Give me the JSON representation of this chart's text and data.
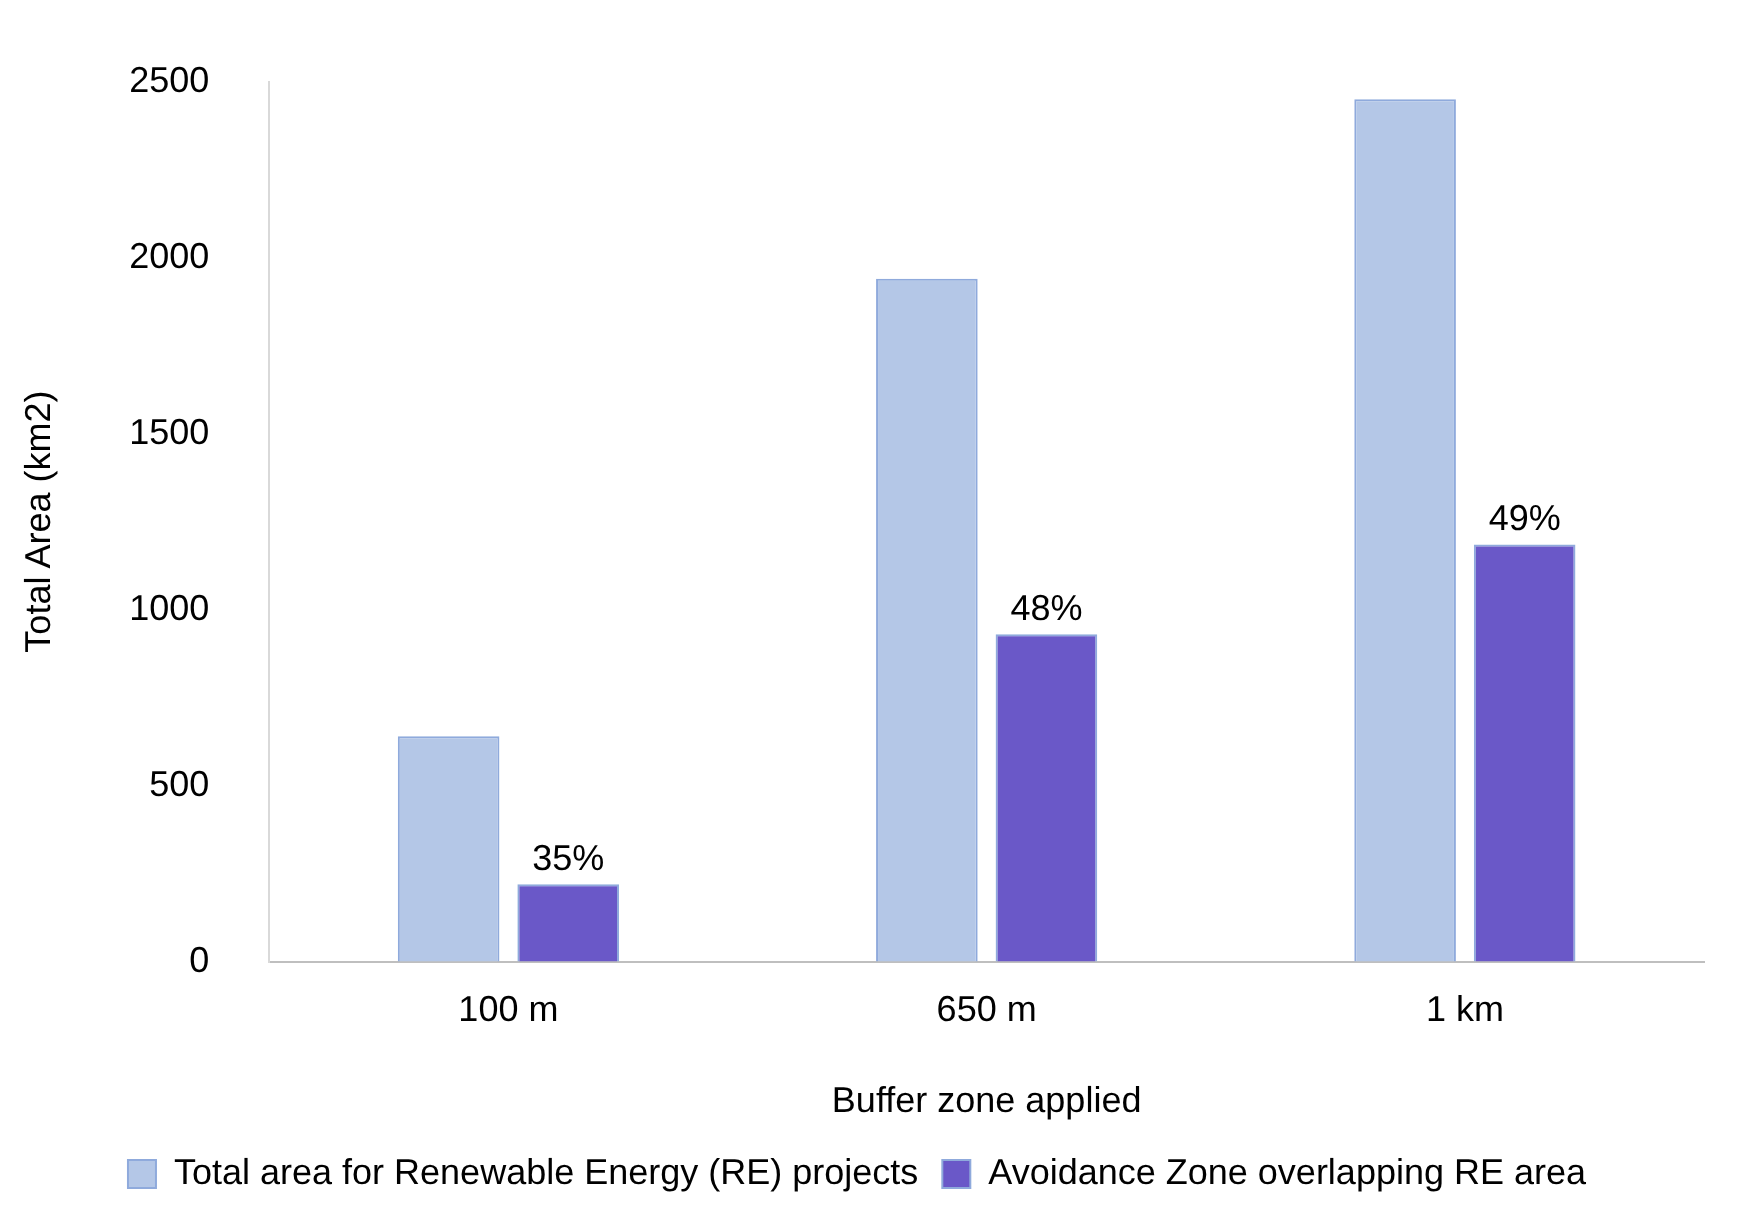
{
  "chart_data": {
    "type": "bar",
    "xlabel": "Buffer zone applied",
    "ylabel": "Total Area (km2)",
    "categories": [
      "100 m",
      "650 m",
      "1 km"
    ],
    "series": [
      {
        "name": "Total area for Renewable Energy (RE) projects",
        "color": "#b4c7e7",
        "values": [
          640,
          1940,
          2450
        ]
      },
      {
        "name": "Avoidance Zone overlapping RE area",
        "color": "#6a58c8",
        "values": [
          220,
          930,
          1185
        ]
      }
    ],
    "annotations": [
      "35%",
      "48%",
      "49%"
    ],
    "ylim": [
      0,
      2500
    ],
    "yticks": [
      0,
      500,
      1000,
      1500,
      2000,
      2500
    ],
    "grid": false,
    "legend": "bottom"
  }
}
